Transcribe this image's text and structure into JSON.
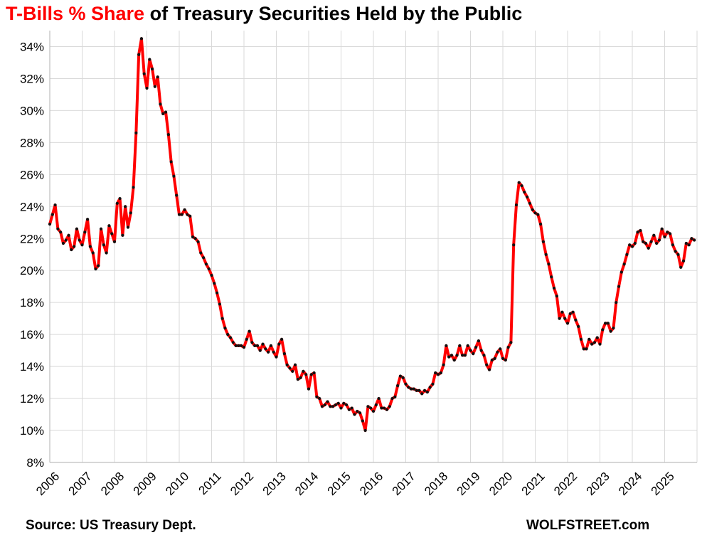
{
  "title": {
    "highlight": "T-Bills % Share",
    "rest": " of Treasury Securities Held by the Public"
  },
  "source": "Source: US Treasury Dept.",
  "credit": "WOLFSTREET.com",
  "colors": {
    "line": "#ff0000",
    "marker": "#111111",
    "grid": "#d9d9d9",
    "highlight": "#ff0000"
  },
  "chart_data": {
    "type": "line",
    "title": "T-Bills % Share of Treasury Securities Held by the Public",
    "xlabel": "",
    "ylabel": "",
    "x_start": 2006,
    "x_end": 2026,
    "x_ticks": [
      "2006",
      "2007",
      "2008",
      "2009",
      "2010",
      "2011",
      "2012",
      "2013",
      "2014",
      "2015",
      "2016",
      "2017",
      "2018",
      "2019",
      "2020",
      "2021",
      "2022",
      "2023",
      "2024",
      "2025"
    ],
    "ylim": [
      8,
      35
    ],
    "y_ticks": [
      {
        "value": 8,
        "label": "8%"
      },
      {
        "value": 10,
        "label": "10%"
      },
      {
        "value": 12,
        "label": "12%"
      },
      {
        "value": 14,
        "label": "14%"
      },
      {
        "value": 16,
        "label": "16%"
      },
      {
        "value": 18,
        "label": "18%"
      },
      {
        "value": 20,
        "label": "20%"
      },
      {
        "value": 22,
        "label": "22%"
      },
      {
        "value": 24,
        "label": "24%"
      },
      {
        "value": 26,
        "label": "26%"
      },
      {
        "value": 28,
        "label": "28%"
      },
      {
        "value": 30,
        "label": "30%"
      },
      {
        "value": 32,
        "label": "32%"
      },
      {
        "value": 34,
        "label": "34%"
      }
    ],
    "grid": true,
    "legend": "none",
    "frequency": "monthly, starting January 2006",
    "series": [
      {
        "values": [
          22.9,
          23.5,
          24.1,
          22.6,
          22.4,
          21.7,
          21.9,
          22.2,
          21.3,
          21.5,
          22.6,
          21.9,
          21.6,
          22.4,
          23.2,
          21.5,
          21.1,
          20.1,
          20.3,
          22.6,
          21.6,
          21.1,
          22.8,
          22.3,
          21.8,
          24.2,
          24.5,
          22.2,
          24.0,
          22.7,
          23.6,
          25.2,
          28.6,
          33.5,
          34.5,
          32.3,
          31.4,
          33.2,
          32.6,
          31.5,
          32.1,
          30.4,
          29.8,
          29.9,
          28.5,
          26.8,
          25.9,
          24.7,
          23.5,
          23.5,
          23.8,
          23.5,
          23.4,
          22.1,
          22.0,
          21.8,
          21.1,
          20.8,
          20.4,
          20.1,
          19.7,
          19.2,
          18.6,
          17.9,
          17.0,
          16.4,
          16.0,
          15.8,
          15.5,
          15.3,
          15.3,
          15.3,
          15.2,
          15.7,
          16.2,
          15.5,
          15.3,
          15.3,
          15.0,
          15.4,
          15.1,
          14.9,
          15.3,
          14.9,
          14.6,
          15.4,
          15.7,
          14.8,
          14.1,
          13.9,
          13.7,
          14.1,
          13.2,
          13.3,
          13.7,
          13.5,
          12.6,
          13.5,
          13.6,
          12.1,
          12.0,
          11.5,
          11.6,
          11.8,
          11.5,
          11.5,
          11.6,
          11.7,
          11.4,
          11.7,
          11.6,
          11.3,
          11.4,
          11.0,
          11.2,
          11.1,
          10.6,
          10.0,
          11.5,
          11.4,
          11.2,
          11.6,
          12.0,
          11.4,
          11.4,
          11.3,
          11.5,
          12.0,
          12.1,
          12.8,
          13.4,
          13.3,
          12.9,
          12.7,
          12.6,
          12.6,
          12.5,
          12.5,
          12.3,
          12.5,
          12.4,
          12.7,
          12.9,
          13.6,
          13.5,
          13.6,
          14.1,
          15.3,
          14.6,
          14.7,
          14.4,
          14.7,
          15.3,
          14.7,
          14.7,
          15.3,
          15.0,
          14.8,
          15.2,
          15.6,
          15.0,
          14.7,
          14.1,
          13.8,
          14.4,
          14.5,
          14.9,
          15.1,
          14.5,
          14.4,
          15.2,
          15.5,
          21.6,
          24.1,
          25.5,
          25.3,
          24.9,
          24.6,
          24.2,
          23.8,
          23.6,
          23.5,
          22.9,
          21.8,
          21.0,
          20.4,
          19.6,
          18.9,
          18.4,
          17.0,
          17.4,
          17.0,
          16.7,
          17.3,
          17.4,
          16.9,
          16.5,
          15.7,
          15.1,
          15.1,
          15.7,
          15.4,
          15.5,
          15.8,
          15.4,
          16.3,
          16.7,
          16.7,
          16.2,
          16.4,
          18.0,
          19.0,
          19.9,
          20.4,
          21.0,
          21.6,
          21.5,
          21.7,
          22.4,
          22.5,
          21.8,
          21.7,
          21.4,
          21.8,
          22.2,
          21.7,
          21.9,
          22.6,
          22.1,
          22.4,
          22.3,
          21.6,
          21.2,
          21.0,
          20.2,
          20.6,
          21.7,
          21.6,
          22.0,
          21.9
        ]
      }
    ]
  }
}
